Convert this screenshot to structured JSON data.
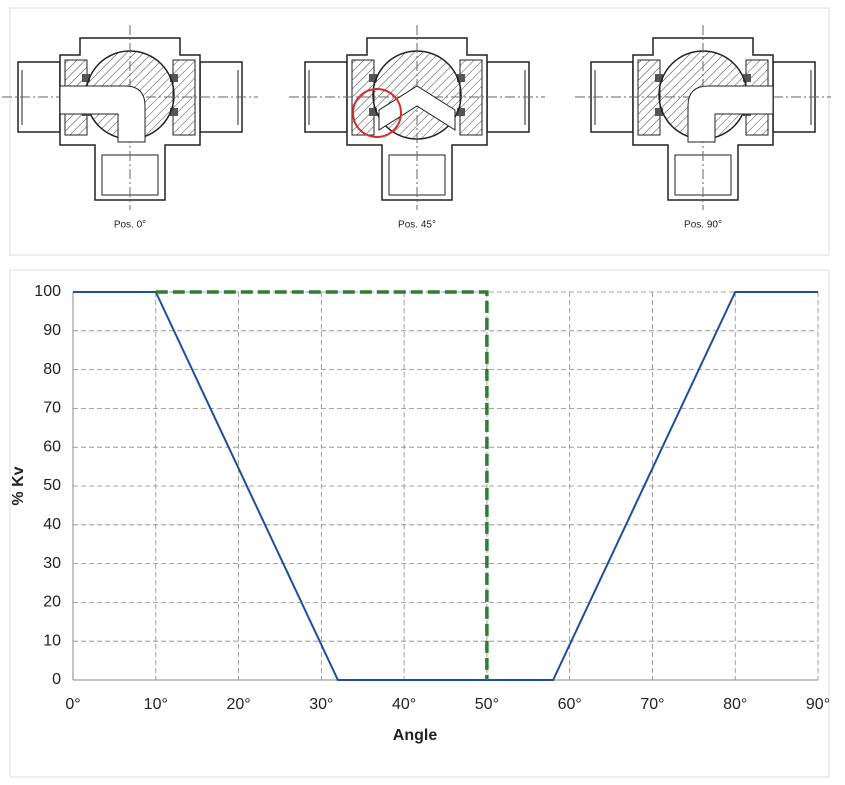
{
  "figure": {
    "captions": [
      "Pos. 0°",
      "Pos. 45°",
      "Pos. 90°"
    ]
  },
  "chart_data": {
    "type": "line",
    "xlabel": "Angle",
    "ylabel": "% Kv",
    "xlim": [
      0,
      90
    ],
    "ylim": [
      0,
      100
    ],
    "xticks": [
      {
        "value": 0,
        "label": "0°"
      },
      {
        "value": 10,
        "label": "10°"
      },
      {
        "value": 20,
        "label": "20°"
      },
      {
        "value": 30,
        "label": "30°"
      },
      {
        "value": 40,
        "label": "40°"
      },
      {
        "value": 50,
        "label": "50°"
      },
      {
        "value": 60,
        "label": "60°"
      },
      {
        "value": 70,
        "label": "70°"
      },
      {
        "value": 80,
        "label": "80°"
      },
      {
        "value": 90,
        "label": "90°"
      }
    ],
    "yticks": [
      0,
      10,
      20,
      30,
      40,
      50,
      60,
      70,
      80,
      90,
      100
    ],
    "grid": true,
    "series": [
      {
        "color": "#1f4e9c",
        "dashed": false,
        "x": [
          0,
          10,
          32,
          58,
          80,
          90
        ],
        "values": [
          100,
          100,
          0,
          0,
          100,
          100
        ]
      },
      {
        "color": "#2e7d32",
        "dashed": true,
        "x": [
          10,
          50,
          50
        ],
        "values": [
          100,
          100,
          0
        ]
      }
    ]
  }
}
